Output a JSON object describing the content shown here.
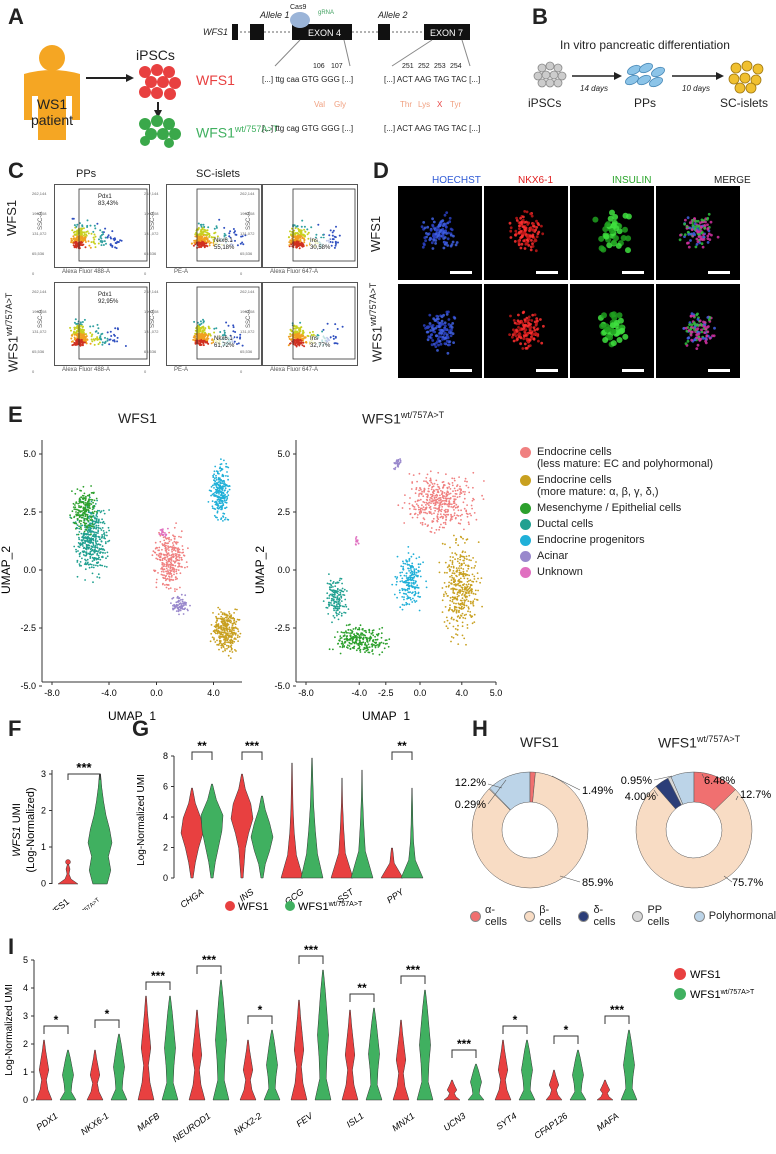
{
  "panels": {
    "A": "A",
    "B": "B",
    "C": "C",
    "D": "D",
    "E": "E",
    "F": "F",
    "G": "G",
    "H": "H",
    "I": "I"
  },
  "panelA": {
    "patient": [
      "WS1",
      "patient"
    ],
    "ipscs": "iPSCs",
    "wfs1": "WFS1",
    "wfs1_edited": "WFS1",
    "wfs1_edited_sup": "wt/757A>T",
    "gene_label": "WFS1",
    "allele1": "Allele 1",
    "allele2": "Allele 2",
    "exon4": "EXON 4",
    "exon7": "EXON 7",
    "cas9": "Cas9",
    "grna": "gRNA",
    "codon_nums_a1": [
      "106",
      "107"
    ],
    "codon_nums_a2": [
      "251",
      "252",
      "253",
      "254"
    ],
    "seq_a1_top": "[...] ttg caa GTG GGG [...]",
    "seq_a2_top": "[...] ACT AAG TAG TAC [...]",
    "aa_a1": [
      "Val",
      "Gly"
    ],
    "aa_a2": [
      "Thr",
      "Lys",
      "X",
      "Tyr"
    ],
    "seq_a1_bottom": "[...] ttg cag GTG GGG [...]",
    "seq_a2_bottom": "[...] ACT AAG TAG TAC [...]"
  },
  "panelB": {
    "title": "In vitro pancreatic differentiation",
    "stage1": "iPSCs",
    "stage2": "PPs",
    "stage3": "SC-islets",
    "step1": "14 days",
    "step2": "10 days"
  },
  "panelC": {
    "col1": "PPs",
    "col2": "SC-islets",
    "row1": "WFS1",
    "row2": "WFS1",
    "row2_sup": "wt/757A>T",
    "gates": [
      {
        "name": "Pdx1",
        "pct": "83,43%"
      },
      {
        "name": "Nkx6.1",
        "pct": "55,18%"
      },
      {
        "name": "Ins",
        "pct": "30,58%"
      },
      {
        "name": "Pdx1",
        "pct": "92,95%"
      },
      {
        "name": "Nkx6.1",
        "pct": "61,72%"
      },
      {
        "name": "Ins",
        "pct": "32,77%"
      }
    ],
    "xaxes": [
      "Alexa Fluor 488-A",
      "PE-A",
      "Alexa Fluor 647-A",
      "Alexa Fluor 488-A",
      "PE-A",
      "Alexa Fluor 647-A"
    ],
    "yaxis": "SSC-A",
    "yticks": [
      "262,144",
      "196,608",
      "131,072",
      "65,536",
      "0"
    ]
  },
  "panelD": {
    "cols": [
      "HOECHST",
      "NKX6-1",
      "INSULIN",
      "MERGE"
    ],
    "col_colors": [
      "#2f5bd6",
      "#e02020",
      "#2aa52a",
      "#222222"
    ],
    "row1": "WFS1",
    "row2": "WFS1",
    "row2_sup": "wt/757A>T"
  },
  "panelE": {
    "left_title": "WFS1",
    "right_title": "WFS1",
    "right_sup": "wt/757A>T",
    "xlabel": "UMAP_1",
    "ylabel": "UMAP_2",
    "left_xticks": [
      "-8.0",
      "-4.0",
      "0.0",
      "4.0"
    ],
    "right_xticks": [
      "-8.0",
      "-4.0",
      "-2.5",
      "0.0",
      "4.0",
      "5.0"
    ],
    "yticks": [
      "5.0",
      "2.5",
      "0.0",
      "-2.5",
      "-5.0"
    ],
    "legend": [
      {
        "label": "Endocrine cells",
        "sub": "(less mature: EC and polyhormonal)",
        "color": "#f08080"
      },
      {
        "label": "Endocrine cells",
        "sub": "(more mature: α, β, γ, δ,)",
        "color": "#c8a020"
      },
      {
        "label": "Mesenchyme / Epithelial cells",
        "sub": "",
        "color": "#2ca02c"
      },
      {
        "label": "Ductal cells",
        "sub": "",
        "color": "#20a090"
      },
      {
        "label": "Endocrine progenitors",
        "sub": "",
        "color": "#20b0d8"
      },
      {
        "label": "Acinar",
        "sub": "",
        "color": "#9988cc"
      },
      {
        "label": "Unknown",
        "sub": "",
        "color": "#e070c0"
      }
    ]
  },
  "panelF": {
    "ylabel_gene": "WFS1",
    "ylabel_rest": " UMI",
    "ylabel2": "(Log-Normalized)",
    "yticks": [
      "3",
      "2",
      "1",
      "0"
    ],
    "sig": "***",
    "xlabels": [
      "WFS1",
      "WFS1"
    ],
    "x2_sup": "wt/757A>T"
  },
  "panelG": {
    "ylabel": "Log-Normalized UMI",
    "yticks": [
      "8",
      "6",
      "4",
      "2",
      "0"
    ],
    "genes": [
      "CHGA",
      "INS",
      "GCG",
      "SST",
      "PPY"
    ],
    "sig": [
      "**",
      "***",
      "",
      "",
      "**"
    ],
    "legend_wt": "WFS1",
    "legend_mut": "WFS1",
    "legend_mut_sup": "wt/757A>T"
  },
  "panelH": {
    "left_title": "WFS1",
    "right_title": "WFS1",
    "right_sup": "wt/757A>T",
    "left_slices": [
      {
        "name": "α-cells",
        "value": 1.49,
        "label": "1.49%"
      },
      {
        "name": "β-cells",
        "value": 85.9,
        "label": "85.9%"
      },
      {
        "name": "δ-cells",
        "value": 0.0,
        "label": ""
      },
      {
        "name": "PP cells",
        "value": 0.29,
        "label": "0.29%"
      },
      {
        "name": "Polyhormonal",
        "value": 12.2,
        "label": "12.2%"
      }
    ],
    "right_slices": [
      {
        "name": "α-cells",
        "value": 12.7,
        "label": "12.7%"
      },
      {
        "name": "β-cells",
        "value": 75.7,
        "label": "75.7%"
      },
      {
        "name": "δ-cells",
        "value": 4.0,
        "label": "4.00%"
      },
      {
        "name": "PP cells",
        "value": 0.95,
        "label": "0.95%"
      },
      {
        "name": "Polyhormonal",
        "value": 6.48,
        "label": "6.48%"
      }
    ],
    "legend": [
      {
        "name": "α-cells",
        "color": "#f07070"
      },
      {
        "name": "β-cells",
        "color": "#f8dcc4"
      },
      {
        "name": "δ-cells",
        "color": "#2c3e78"
      },
      {
        "name": "PP cells",
        "color": "#d8d8d8"
      },
      {
        "name": "Polyhormonal",
        "color": "#bcd4e8"
      }
    ]
  },
  "panelI": {
    "ylabel": "Log-Normalized UMI",
    "yticks": [
      "5",
      "4",
      "3",
      "2",
      "1",
      "0"
    ],
    "genes": [
      "PDX1",
      "NKX6-1",
      "MAFB",
      "NEUROD1",
      "NKX2-2",
      "FEV",
      "ISL1",
      "MNX1",
      "UCN3",
      "SYT4",
      "CFAP126",
      "MAFA"
    ],
    "sig": [
      "*",
      "*",
      "***",
      "***",
      "*",
      "***",
      "**",
      "***",
      "***",
      "*",
      "*",
      "***"
    ],
    "legend_wt": "WFS1",
    "legend_mut": "WFS1",
    "legend_mut_sup": "wt/757A>T"
  },
  "colors": {
    "wt": "#e84040",
    "mut": "#40b060",
    "orange": "#f0a020"
  },
  "chart_data": [
    {
      "type": "pie",
      "title": "WFS1",
      "categories": [
        "α-cells",
        "β-cells",
        "δ-cells",
        "PP cells",
        "Polyhormonal"
      ],
      "values": [
        1.49,
        85.9,
        0.0,
        0.29,
        12.2
      ]
    },
    {
      "type": "pie",
      "title": "WFS1 wt/757A>T",
      "categories": [
        "α-cells",
        "β-cells",
        "δ-cells",
        "PP cells",
        "Polyhormonal"
      ],
      "values": [
        12.7,
        75.7,
        4.0,
        0.95,
        6.48
      ]
    }
  ]
}
